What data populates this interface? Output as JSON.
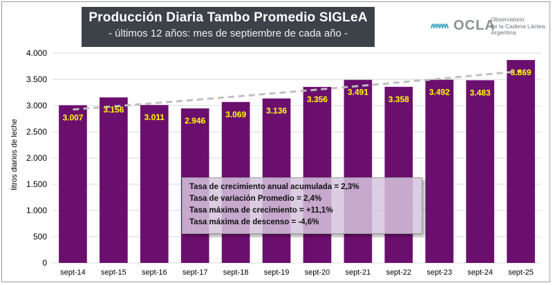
{
  "header": {
    "title": "Producción Diaria Tambo Promedio SIGLeA",
    "subtitle": "- últimos 12 años: mes de septiembre de cada año -"
  },
  "logo": {
    "name": "OCLA",
    "line1": "Observatorio",
    "line2": "de la Cadena Láctea",
    "line3": "Argentina",
    "icon": "ocla-waves-logo"
  },
  "chart_data": {
    "type": "bar",
    "categories": [
      "sept-14",
      "sept-15",
      "sept-16",
      "sept-17",
      "sept-18",
      "sept-19",
      "sept-20",
      "sept-21",
      "sept-22",
      "sept-23",
      "sept-24",
      "sept-25"
    ],
    "values": [
      3007,
      3156,
      3011,
      2946,
      3069,
      3136,
      3356,
      3491,
      3358,
      3492,
      3483,
      3869
    ],
    "value_labels": [
      "3.007",
      "3.156",
      "3.011",
      "2.946",
      "3.069",
      "3.136",
      "3.356",
      "3.491",
      "3.358",
      "3.492",
      "3.483",
      "3.869"
    ],
    "ylabel": "litros diarios de leche",
    "ylim": [
      0,
      4000
    ],
    "yticks": [
      0,
      500,
      1000,
      1500,
      2000,
      2500,
      3000,
      3500,
      4000
    ],
    "ytick_labels": [
      "0",
      "500",
      "1.000",
      "1.500",
      "2.000",
      "2.500",
      "3.000",
      "3.500",
      "4.000"
    ],
    "trendline": {
      "type": "exponential",
      "style": "dashed",
      "color": "#bfbfbf"
    },
    "grid": true,
    "colors": {
      "bar": "#6b0f6e",
      "value_label": "#ffff00",
      "grid": "#d9d9d9"
    }
  },
  "stats": {
    "line1": "Tasa de crecimiento anual acumulada = 2,3%",
    "line2": "Tasa de variación Promedio = 2,4%",
    "line3": "Tasa máxima de crecimiento = +11,1%",
    "line4": "Tasa máxima de descenso = -4,6%"
  }
}
